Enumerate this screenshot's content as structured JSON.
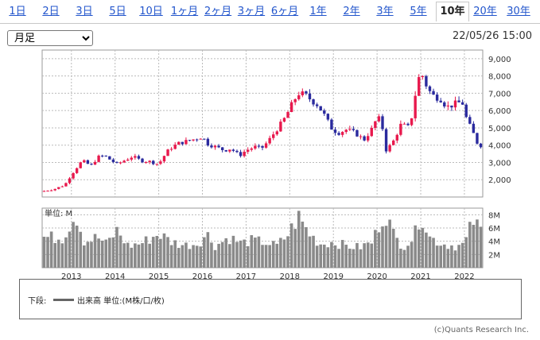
{
  "tabs": [
    {
      "label": "1日"
    },
    {
      "label": "2日"
    },
    {
      "label": "3日"
    },
    {
      "label": "5日"
    },
    {
      "label": "10日"
    },
    {
      "label": "1ヶ月"
    },
    {
      "label": "2ヶ月"
    },
    {
      "label": "3ヶ月"
    },
    {
      "label": "6ヶ月"
    },
    {
      "label": "1年"
    },
    {
      "label": "2年"
    },
    {
      "label": "3年"
    },
    {
      "label": "5年"
    },
    {
      "label": "10年",
      "active": true
    },
    {
      "label": "20年"
    },
    {
      "label": "30年"
    }
  ],
  "period_select": {
    "value": "月足"
  },
  "timestamp": "22/05/26 15:00",
  "volume_panel_label": "単位: M",
  "legend": {
    "label": "下段:",
    "series": "出来高 単位:(M株/口/枚)"
  },
  "credit": "(c)Quants Research Inc.",
  "colors": {
    "up": "#e8194d",
    "down": "#2a2a9e",
    "volume": "#8a8a8a",
    "grid": "#bbbbbb"
  },
  "chart_data": [
    {
      "type": "candlestick",
      "interval": "monthly",
      "x_ticks": [
        "2013",
        "2014",
        "2015",
        "2016",
        "2017",
        "2018",
        "2019",
        "2020",
        "2021",
        "2022"
      ],
      "y_ticks": [
        "2,000",
        "3,000",
        "4,000",
        "5,000",
        "6,000",
        "7,000",
        "8,000",
        "9,000"
      ],
      "ylim": [
        1000,
        9500
      ],
      "x_range": [
        2012.33,
        2022.42
      ],
      "grid": true,
      "close_anchors": [
        [
          2012.38,
          1350
        ],
        [
          2012.6,
          1450
        ],
        [
          2012.85,
          1700
        ],
        [
          2013.0,
          2300
        ],
        [
          2013.15,
          2800
        ],
        [
          2013.25,
          3100
        ],
        [
          2013.45,
          2800
        ],
        [
          2013.6,
          3300
        ],
        [
          2013.75,
          3400
        ],
        [
          2013.92,
          3100
        ],
        [
          2014.05,
          2900
        ],
        [
          2014.2,
          3100
        ],
        [
          2014.4,
          3350
        ],
        [
          2014.6,
          3100
        ],
        [
          2014.8,
          3050
        ],
        [
          2015.0,
          2900
        ],
        [
          2015.1,
          3300
        ],
        [
          2015.25,
          3800
        ],
        [
          2015.45,
          4100
        ],
        [
          2015.6,
          4200
        ],
        [
          2015.75,
          4300
        ],
        [
          2016.0,
          4500
        ],
        [
          2016.1,
          4100
        ],
        [
          2016.3,
          3900
        ],
        [
          2016.5,
          3700
        ],
        [
          2016.65,
          3800
        ],
        [
          2016.85,
          3400
        ],
        [
          2017.0,
          3700
        ],
        [
          2017.2,
          3900
        ],
        [
          2017.35,
          3800
        ],
        [
          2017.5,
          4200
        ],
        [
          2017.7,
          4900
        ],
        [
          2017.85,
          5400
        ],
        [
          2018.0,
          6100
        ],
        [
          2018.1,
          6600
        ],
        [
          2018.2,
          7000
        ],
        [
          2018.35,
          6900
        ],
        [
          2018.5,
          6600
        ],
        [
          2018.65,
          6300
        ],
        [
          2018.8,
          5700
        ],
        [
          2018.95,
          5000
        ],
        [
          2019.1,
          4700
        ],
        [
          2019.3,
          4900
        ],
        [
          2019.5,
          4700
        ],
        [
          2019.7,
          4300
        ],
        [
          2019.9,
          5000
        ],
        [
          2020.0,
          5600
        ],
        [
          2020.1,
          5400
        ],
        [
          2020.2,
          3700
        ],
        [
          2020.35,
          4100
        ],
        [
          2020.55,
          5200
        ],
        [
          2020.75,
          5000
        ],
        [
          2020.9,
          7300
        ],
        [
          2021.0,
          8300
        ],
        [
          2021.1,
          7600
        ],
        [
          2021.25,
          6900
        ],
        [
          2021.45,
          6700
        ],
        [
          2021.6,
          6200
        ],
        [
          2021.8,
          6400
        ],
        [
          2021.95,
          6500
        ],
        [
          2022.05,
          5500
        ],
        [
          2022.2,
          4700
        ],
        [
          2022.3,
          4100
        ],
        [
          2022.4,
          3950
        ]
      ]
    },
    {
      "type": "bar",
      "title": "単位: M",
      "y_ticks": [
        "2M",
        "4M",
        "6M",
        "8M"
      ],
      "ylim": [
        0,
        9
      ],
      "volume_anchors": [
        [
          2012.38,
          4.5
        ],
        [
          2012.8,
          4.4
        ],
        [
          2013.1,
          8.0
        ],
        [
          2013.3,
          3.8
        ],
        [
          2013.6,
          4.5
        ],
        [
          2013.8,
          3.5
        ],
        [
          2014.05,
          5.5
        ],
        [
          2014.3,
          3.2
        ],
        [
          2014.6,
          3.6
        ],
        [
          2015.0,
          5.0
        ],
        [
          2015.3,
          3.8
        ],
        [
          2015.6,
          3.3
        ],
        [
          2015.9,
          3.6
        ],
        [
          2016.1,
          5.0
        ],
        [
          2016.3,
          3.2
        ],
        [
          2016.6,
          4.5
        ],
        [
          2016.9,
          3.6
        ],
        [
          2017.1,
          4.0
        ],
        [
          2017.4,
          3.8
        ],
        [
          2017.7,
          3.2
        ],
        [
          2017.95,
          4.8
        ],
        [
          2018.2,
          7.5
        ],
        [
          2018.45,
          5.0
        ],
        [
          2018.7,
          3.5
        ],
        [
          2019.0,
          3.8
        ],
        [
          2019.3,
          3.2
        ],
        [
          2019.6,
          3.0
        ],
        [
          2019.9,
          3.8
        ],
        [
          2020.05,
          6.5
        ],
        [
          2020.2,
          8.0
        ],
        [
          2020.4,
          4.5
        ],
        [
          2020.6,
          3.2
        ],
        [
          2020.85,
          4.5
        ],
        [
          2021.0,
          8.2
        ],
        [
          2021.2,
          4.5
        ],
        [
          2021.5,
          3.5
        ],
        [
          2021.8,
          3.2
        ],
        [
          2022.0,
          3.4
        ],
        [
          2022.2,
          7.0
        ],
        [
          2022.3,
          6.0
        ],
        [
          2022.4,
          5.5
        ]
      ]
    }
  ]
}
